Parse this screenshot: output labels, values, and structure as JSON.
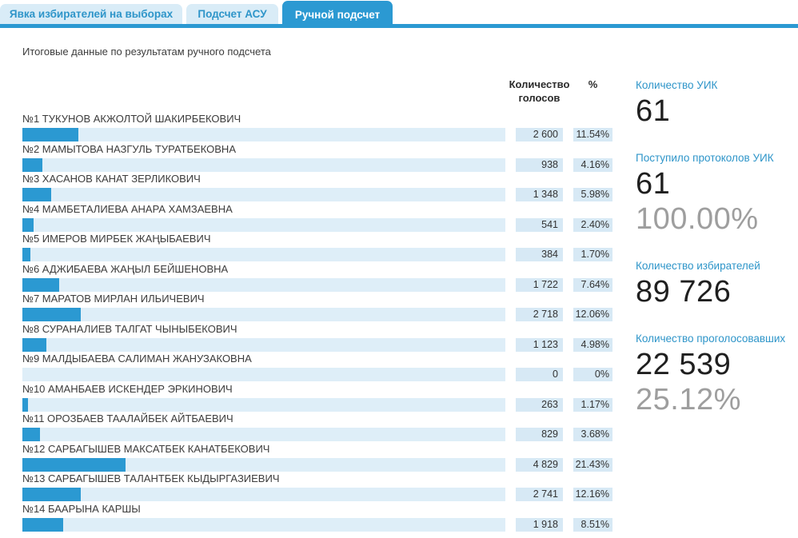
{
  "tabs": [
    {
      "label": "Явка избирателей на выборах",
      "active": false
    },
    {
      "label": "Подсчет АСУ",
      "active": false
    },
    {
      "label": "Ручной подсчет",
      "active": true
    }
  ],
  "title": "Итоговые данные по результатам ручного подсчета",
  "table": {
    "headers": {
      "votes_line1": "Количество",
      "votes_line2": "голосов",
      "percent": "%"
    },
    "rows": [
      {
        "name": "№1 ТУКУНОВ АКЖОЛТОЙ ШАКИРБЕКОВИЧ",
        "votes": "2 600",
        "percent": "11.54%",
        "bar_pct": 11.54
      },
      {
        "name": "№2 МАМЫТОВА НАЗГУЛЬ ТУРАТБЕКОВНА",
        "votes": "938",
        "percent": "4.16%",
        "bar_pct": 4.16
      },
      {
        "name": "№3 ХАСАНОВ КАНАТ ЗЕРЛИКОВИЧ",
        "votes": "1 348",
        "percent": "5.98%",
        "bar_pct": 5.98
      },
      {
        "name": "№4 МАМБЕТАЛИЕВА АНАРА ХАМЗАЕВНА",
        "votes": "541",
        "percent": "2.40%",
        "bar_pct": 2.4
      },
      {
        "name": "№5 ИМЕРОВ МИРБЕК ЖАҢЫБАЕВИЧ",
        "votes": "384",
        "percent": "1.70%",
        "bar_pct": 1.7
      },
      {
        "name": "№6 АДЖИБАЕВА ЖАҢЫЛ БЕЙШЕНОВНА",
        "votes": "1 722",
        "percent": "7.64%",
        "bar_pct": 7.64
      },
      {
        "name": "№7 МАРАТОВ МИРЛАН ИЛЬИЧЕВИЧ",
        "votes": "2 718",
        "percent": "12.06%",
        "bar_pct": 12.06
      },
      {
        "name": "№8 СУРАНАЛИЕВ ТАЛГАТ ЧЫНЫБЕКОВИЧ",
        "votes": "1 123",
        "percent": "4.98%",
        "bar_pct": 4.98
      },
      {
        "name": "№9 МАЛДЫБАЕВА САЛИМАН ЖАНУЗАКОВНА",
        "votes": "0",
        "percent": "0%",
        "bar_pct": 0
      },
      {
        "name": "№10 АМАНБАЕВ ИСКЕНДЕР ЭРКИНОВИЧ",
        "votes": "263",
        "percent": "1.17%",
        "bar_pct": 1.17
      },
      {
        "name": "№11 ОРОЗБАЕВ ТААЛАЙБЕК АЙТБАЕВИЧ",
        "votes": "829",
        "percent": "3.68%",
        "bar_pct": 3.68
      },
      {
        "name": "№12 САРБАГЫШЕВ МАКСАТБЕК КАНАТБЕКОВИЧ",
        "votes": "4 829",
        "percent": "21.43%",
        "bar_pct": 21.43
      },
      {
        "name": "№13 САРБАГЫШЕВ ТАЛАНТБЕК КЫДЫРГАЗИЕВИЧ",
        "votes": "2 741",
        "percent": "12.16%",
        "bar_pct": 12.16
      },
      {
        "name": "№14 БААРЫНА КАРШЫ",
        "votes": "1 918",
        "percent": "8.51%",
        "bar_pct": 8.51
      }
    ]
  },
  "stats": [
    {
      "label": "Количество УИК",
      "value": "61",
      "sub": ""
    },
    {
      "label": "Поступило протоколов УИК",
      "value": "61",
      "sub": "100.00%"
    },
    {
      "label": "Количество избирателей",
      "value": "89 726",
      "sub": ""
    },
    {
      "label": "Количество проголосовавших",
      "value": "22 539",
      "sub": "25.12%"
    }
  ],
  "colors": {
    "accent": "#2B99D2",
    "bar_track": "#DEEEF8",
    "cell_bg": "#D7E9F5",
    "label_blue": "#2E95C9"
  }
}
